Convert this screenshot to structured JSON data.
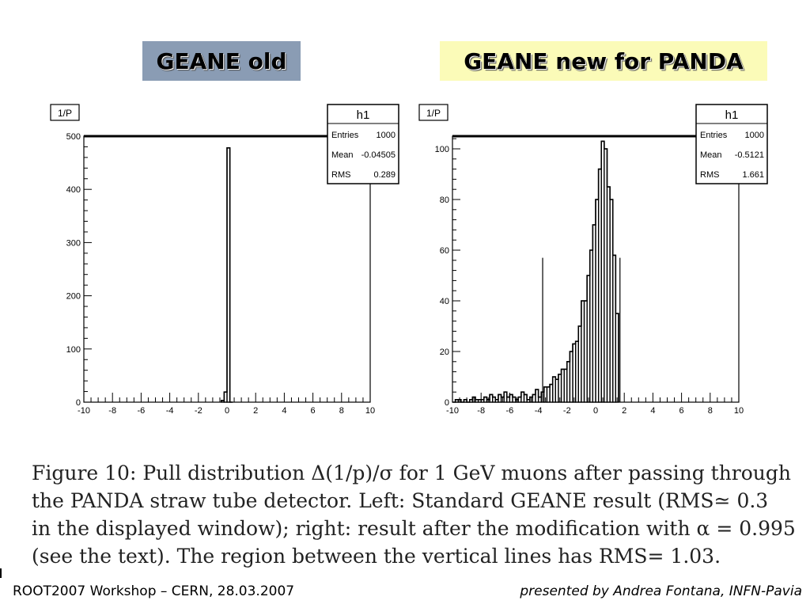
{
  "labels": {
    "old": "GEANE old",
    "new": "GEANE new for PANDA"
  },
  "chart_data": [
    {
      "type": "bar",
      "title": "1/P",
      "xlim": [
        -10,
        10
      ],
      "ylim": [
        0,
        500
      ],
      "x_ticks": [
        -10,
        -8,
        -6,
        -4,
        -2,
        0,
        2,
        4,
        6,
        8,
        10
      ],
      "y_ticks": [
        0,
        100,
        200,
        300,
        400,
        500
      ],
      "bin_edges": [
        -0.4,
        -0.2,
        0,
        0.2,
        0.4
      ],
      "values": [
        3,
        19,
        478,
        0
      ],
      "stats": {
        "name": "h1",
        "entries_label": "Entries",
        "entries": "1000",
        "mean_label": "Mean",
        "mean": "-0.04505",
        "rms_label": "RMS",
        "rms": "0.289"
      },
      "vlines": []
    },
    {
      "type": "bar",
      "title": "1/P",
      "xlim": [
        -10,
        10
      ],
      "ylim": [
        0,
        105
      ],
      "x_ticks": [
        -10,
        -8,
        -6,
        -4,
        -2,
        0,
        2,
        4,
        6,
        8,
        10
      ],
      "y_ticks": [
        0,
        20,
        40,
        60,
        80,
        100
      ],
      "bin_edges": [
        -10,
        -9.8,
        -9.6,
        -9.4,
        -9.2,
        -9.0,
        -8.8,
        -8.6,
        -8.4,
        -8.2,
        -8.0,
        -7.8,
        -7.6,
        -7.4,
        -7.2,
        -7.0,
        -6.8,
        -6.6,
        -6.4,
        -6.2,
        -6.0,
        -5.8,
        -5.6,
        -5.4,
        -5.2,
        -5.0,
        -4.8,
        -4.6,
        -4.4,
        -4.2,
        -4.0,
        -3.8,
        -3.6,
        -3.4,
        -3.2,
        -3.0,
        -2.8,
        -2.6,
        -2.4,
        -2.2,
        -2.0,
        -1.8,
        -1.6,
        -1.4,
        -1.2,
        -1.0,
        -0.8,
        -0.6,
        -0.4,
        -0.2,
        0,
        0.2,
        0.4,
        0.6,
        0.8,
        1.0,
        1.2,
        1.4,
        1.6
      ],
      "values": [
        0,
        1,
        1,
        0,
        1,
        0,
        1,
        2,
        1,
        1,
        1,
        2,
        1,
        3,
        2,
        1,
        3,
        2,
        4,
        2,
        3,
        2,
        1,
        2,
        4,
        3,
        1,
        2,
        3,
        5,
        2,
        4,
        6,
        6,
        7,
        10,
        9,
        11,
        13,
        13,
        16,
        20,
        23,
        24,
        30,
        40,
        40,
        50,
        60,
        70,
        80,
        92,
        103,
        100,
        85,
        80,
        58,
        35
      ],
      "stats": {
        "name": "h1",
        "entries_label": "Entries",
        "entries": "1000",
        "mean_label": "Mean",
        "mean": "-0.5121",
        "rms_label": "RMS",
        "rms": "1.661"
      },
      "vlines": [
        {
          "x": -3.7,
          "y": 57
        },
        {
          "x": 1.7,
          "y": 57
        }
      ]
    }
  ],
  "caption": {
    "line1": "Figure 10: Pull distribution Δ(1/p)/σ for 1 GeV muons after passing through",
    "line2": "the PANDA straw tube detector. Left: Standard GEANE result (RMS≃ 0.3",
    "line3": "in the displayed window); right: result after the modification with α = 0.995",
    "line4": "(see the text). The region between the vertical lines has RMS= 1.03."
  },
  "footer": {
    "left": "ROOT2007 Workshop – CERN, 28.03.2007",
    "right": "presented by Andrea Fontana, INFN-Pavia"
  }
}
